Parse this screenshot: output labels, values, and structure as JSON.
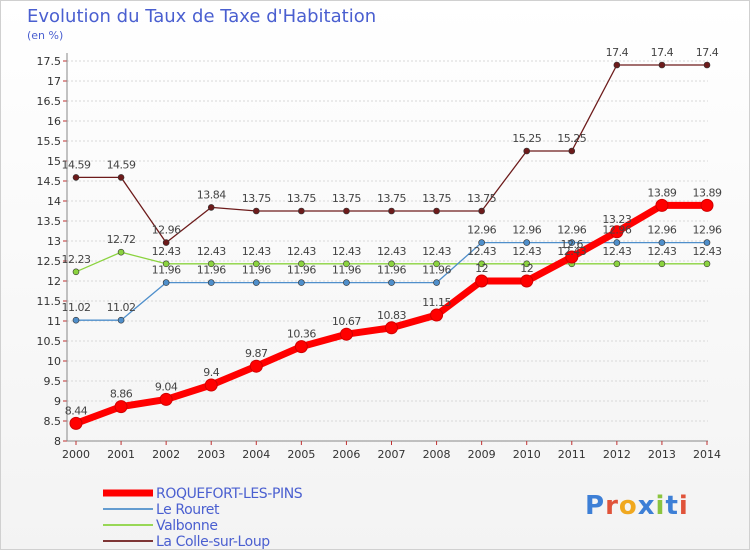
{
  "chart_data": {
    "type": "line",
    "title": "Evolution du Taux de Taxe d'Habitation",
    "subtitle": "(en %)",
    "x": [
      "2000",
      "2001",
      "2002",
      "2003",
      "2004",
      "2005",
      "2006",
      "2007",
      "2008",
      "2009",
      "2010",
      "2011",
      "2012",
      "2013",
      "2014"
    ],
    "ylim": [
      8,
      17.5
    ],
    "yticks": [
      "8",
      "8.5",
      "9",
      "9.5",
      "10",
      "10.5",
      "11",
      "11.5",
      "12",
      "12.5",
      "13",
      "13.5",
      "14",
      "14.5",
      "15",
      "15.5",
      "16",
      "16.5",
      "17",
      "17.5"
    ],
    "grid": true,
    "series": [
      {
        "name": "ROQUEFORT-LES-PINS",
        "color": "#ff0000",
        "values": [
          8.44,
          8.86,
          9.04,
          9.4,
          9.87,
          10.36,
          10.67,
          10.83,
          11.15,
          12,
          12,
          12.6,
          13.23,
          13.89,
          13.89
        ],
        "labels": [
          "8.44",
          "8.86",
          "9.04",
          "9.4",
          "9.87",
          "10.36",
          "10.67",
          "10.83",
          "11.15",
          "12",
          "12",
          "12.6",
          "13.23",
          "13.89",
          "13.89"
        ]
      },
      {
        "name": "Le Rouret",
        "color": "#4f8fcb",
        "values": [
          11.02,
          11.02,
          11.96,
          11.96,
          11.96,
          11.96,
          11.96,
          11.96,
          11.96,
          12.96,
          12.96,
          12.96,
          12.96,
          12.96,
          12.96
        ],
        "labels": [
          "11.02",
          "11.02",
          "11.96",
          "11.96",
          "11.96",
          "11.96",
          "11.96",
          "11.96",
          "11.96",
          "12.96",
          "12.96",
          "12.96",
          "12.96",
          "12.96",
          "12.96"
        ]
      },
      {
        "name": "Valbonne",
        "color": "#8bd33f",
        "values": [
          12.23,
          12.72,
          12.43,
          12.43,
          12.43,
          12.43,
          12.43,
          12.43,
          12.43,
          12.43,
          12.43,
          12.43,
          12.43,
          12.43,
          12.43
        ],
        "labels": [
          "12.23",
          "12.72",
          "12.43",
          "12.43",
          "12.43",
          "12.43",
          "12.43",
          "12.43",
          "12.43",
          "12.43",
          "12.43",
          "12.43",
          "12.43",
          "12.43",
          "12.43"
        ]
      },
      {
        "name": "La Colle-sur-Loup",
        "color": "#6d1b1b",
        "values": [
          14.59,
          14.59,
          12.96,
          13.84,
          13.75,
          13.75,
          13.75,
          13.75,
          13.75,
          13.75,
          15.25,
          15.25,
          17.4,
          17.4,
          17.4
        ],
        "labels": [
          "14.59",
          "14.59",
          "12.96",
          "13.84",
          "13.75",
          "13.75",
          "13.75",
          "13.75",
          "13.75",
          "13.75",
          "15.25",
          "15.25",
          "17.4",
          "17.4",
          "17.4"
        ]
      }
    ]
  },
  "logo": {
    "letters": [
      "P",
      "r",
      "o",
      "x",
      "i",
      "t",
      "i"
    ]
  }
}
